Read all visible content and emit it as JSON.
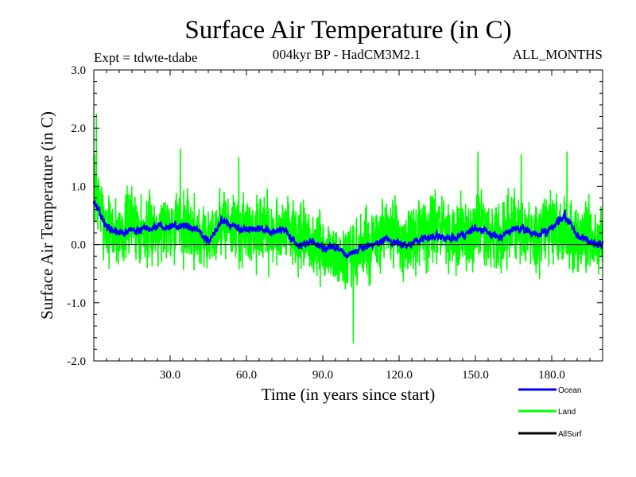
{
  "chart_data": {
    "type": "line",
    "title": "Surface Air Temperature (in C)",
    "subtitle_left": "Expt = tdwte-tdabe",
    "subtitle_center": "004kyr BP - HadCM3M2.1",
    "subtitle_right": "ALL_MONTHS",
    "xlabel": "Time (in years since start)",
    "ylabel": "Surface Air Temperature (in C)",
    "xlim": [
      0,
      200
    ],
    "ylim": [
      -2.0,
      3.0
    ],
    "xticks": [
      30,
      60,
      90,
      120,
      150,
      180
    ],
    "xtick_labels": [
      "30.0",
      "60.0",
      "90.0",
      "120.0",
      "150.0",
      "180.0"
    ],
    "yticks": [
      -2,
      -1,
      0,
      1,
      2,
      3
    ],
    "ytick_labels": [
      "-2.0",
      "-1.0",
      "0.0",
      "1.0",
      "2.0",
      "3.0"
    ],
    "reference_line": 0.0,
    "legend_position": "bottom-right",
    "series": [
      {
        "name": "Land",
        "color": "#00ff00",
        "x": [
          0,
          5,
          10,
          15,
          20,
          25,
          30,
          35,
          40,
          45,
          50,
          55,
          60,
          65,
          70,
          75,
          80,
          85,
          90,
          95,
          100,
          105,
          110,
          115,
          120,
          125,
          130,
          135,
          140,
          145,
          150,
          155,
          160,
          165,
          170,
          175,
          180,
          185,
          190,
          195,
          199
        ],
        "values": [
          1.0,
          0.3,
          0.2,
          0.4,
          0.2,
          0.3,
          0.4,
          0.3,
          0.2,
          0.1,
          0.4,
          0.3,
          0.2,
          0.3,
          0.2,
          0.3,
          0.1,
          0.0,
          -0.1,
          -0.2,
          -0.3,
          -0.1,
          0.0,
          0.2,
          0.1,
          0.0,
          0.2,
          0.3,
          0.1,
          0.2,
          0.3,
          0.2,
          0.1,
          0.3,
          0.2,
          0.1,
          0.3,
          0.2,
          0.1,
          0.2,
          0.1
        ],
        "noise_amplitude": 0.55,
        "extremes": [
          {
            "x": 1,
            "value": 2.25
          },
          {
            "x": 34,
            "value": 1.65
          },
          {
            "x": 57,
            "value": 1.5
          },
          {
            "x": 102,
            "value": -1.7
          },
          {
            "x": 151,
            "value": 1.6
          },
          {
            "x": 168,
            "value": 1.55
          },
          {
            "x": 186,
            "value": 1.6
          }
        ]
      },
      {
        "name": "Ocean",
        "color": "#0000ff",
        "x": [
          0,
          5,
          10,
          15,
          20,
          25,
          30,
          35,
          40,
          45,
          50,
          55,
          60,
          65,
          70,
          75,
          80,
          85,
          90,
          95,
          100,
          105,
          110,
          115,
          120,
          125,
          130,
          135,
          140,
          145,
          150,
          155,
          160,
          165,
          170,
          175,
          180,
          185,
          190,
          195,
          199
        ],
        "values": [
          0.75,
          0.3,
          0.2,
          0.25,
          0.25,
          0.3,
          0.3,
          0.35,
          0.25,
          0.05,
          0.4,
          0.3,
          0.25,
          0.3,
          0.2,
          0.25,
          0.0,
          0.05,
          -0.05,
          -0.05,
          -0.2,
          -0.05,
          0.0,
          0.1,
          0.0,
          0.0,
          0.1,
          0.15,
          0.1,
          0.15,
          0.3,
          0.2,
          0.1,
          0.3,
          0.25,
          0.15,
          0.3,
          0.5,
          0.15,
          0.05,
          0.0
        ],
        "noise_amplitude": 0.12
      },
      {
        "name": "AllSurf",
        "color": "#000000",
        "x": [],
        "values": []
      }
    ]
  }
}
